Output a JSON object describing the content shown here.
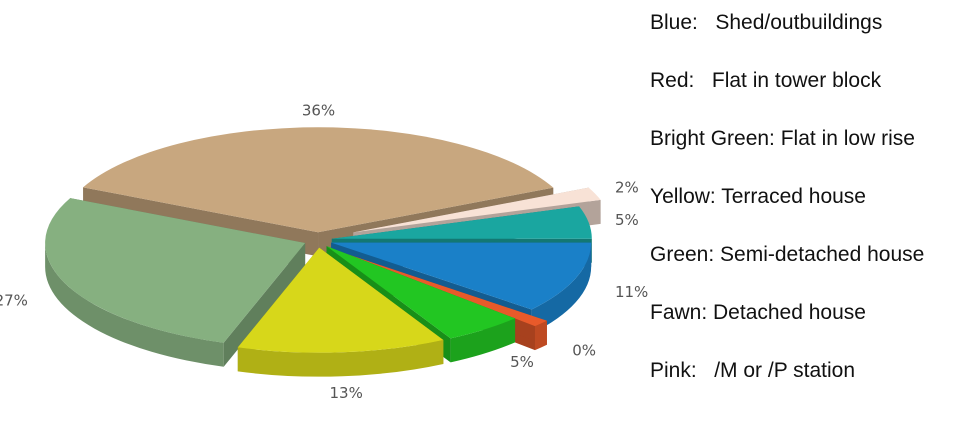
{
  "chart_data": {
    "type": "pie",
    "title": "",
    "three_d": true,
    "exploded": true,
    "slices": [
      {
        "label": "Shed/outbuildings",
        "value": 11,
        "display": "11%",
        "color": "#1a80c8"
      },
      {
        "label": "Flat in tower block",
        "value": 0,
        "display": "0%",
        "color": "#e85a2a"
      },
      {
        "label": "Flat in low rise",
        "value": 5,
        "display": "5%",
        "color": "#22c622"
      },
      {
        "label": "Terraced house",
        "value": 13,
        "display": "13%",
        "color": "#d7d71a"
      },
      {
        "label": "Semi-detached house",
        "value": 27,
        "display": "27%",
        "color": "#86b080"
      },
      {
        "label": "Detached house",
        "value": 36,
        "display": "36%",
        "color": "#c8a77f"
      },
      {
        "label": "/M or /P station",
        "value": 2,
        "display": "2%",
        "color": "#f8e2d6"
      },
      {
        "label": "",
        "value": 5,
        "display": "5%",
        "color": "#1aa6a0"
      }
    ]
  },
  "legend": [
    "Blue:   Shed/outbuildings",
    "Red:   Flat in tower block",
    "Bright Green: Flat in low rise",
    "Yellow: Terraced house",
    "Green: Semi-detached house",
    "Fawn: Detached house",
    "Pink:   /M or /P station"
  ]
}
